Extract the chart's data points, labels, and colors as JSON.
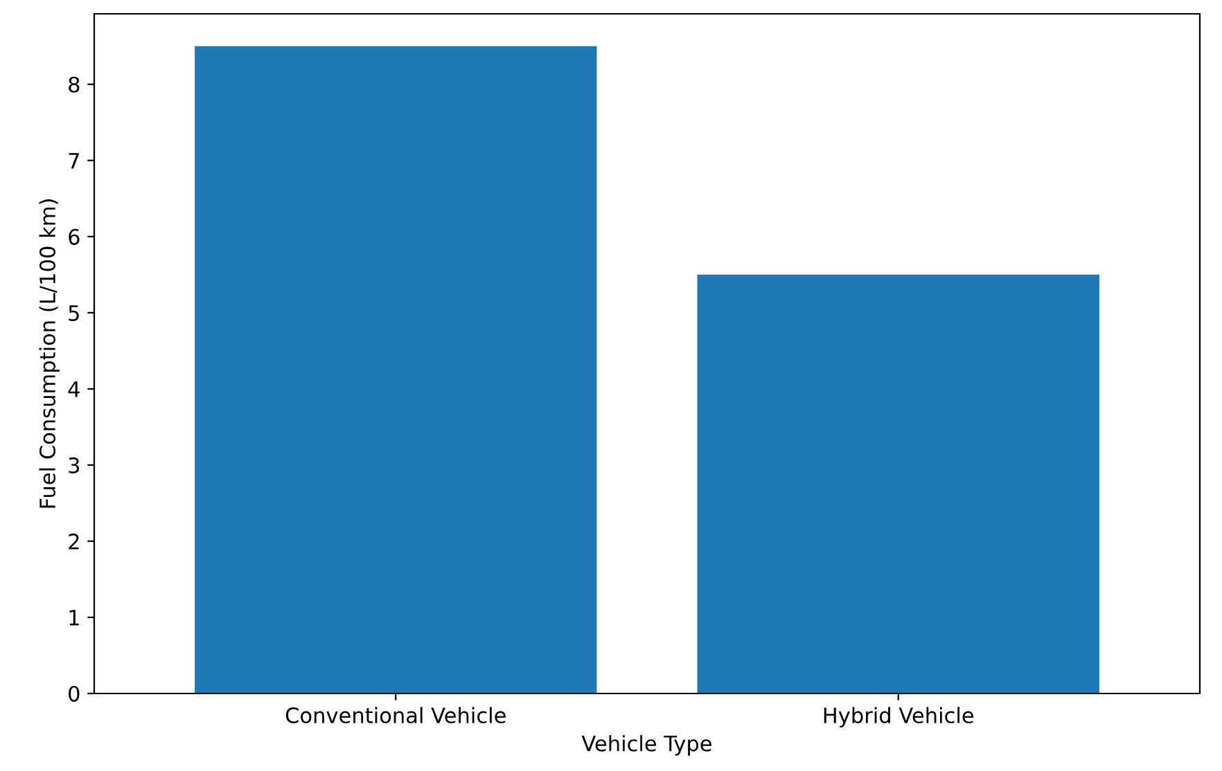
{
  "chart_data": {
    "type": "bar",
    "xlabel": "Vehicle Type",
    "ylabel": "Fuel Consumption (L/100 km)",
    "categories": [
      "Conventional Vehicle",
      "Hybrid Vehicle"
    ],
    "values": [
      8.5,
      5.5
    ],
    "color": "#1f77b4",
    "ylim": [
      0,
      8.925
    ],
    "yticks": [
      0,
      1,
      2,
      3,
      4,
      5,
      6,
      7,
      8
    ],
    "grid": false,
    "legend": false
  }
}
